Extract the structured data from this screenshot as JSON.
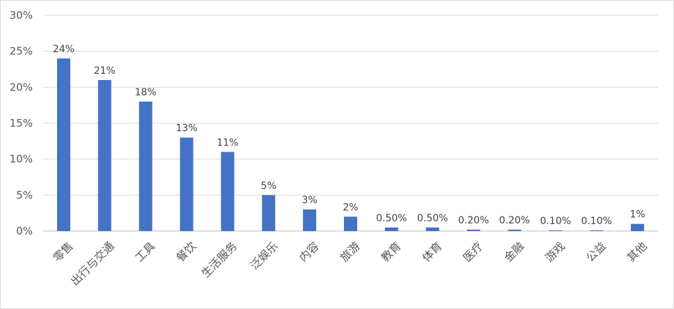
{
  "chart_data": {
    "type": "bar",
    "title": "",
    "xlabel": "",
    "ylabel": "",
    "ylim": [
      0,
      30
    ],
    "yticks": [
      0,
      5,
      10,
      15,
      20,
      25,
      30
    ],
    "ytick_labels": [
      "0%",
      "5%",
      "10%",
      "15%",
      "20%",
      "25%",
      "30%"
    ],
    "grid": true,
    "legend": "none",
    "bar_color": "#4472C4",
    "categories": [
      "零售",
      "出行与交通",
      "工具",
      "餐饮",
      "生活服务",
      "泛娱乐",
      "内容",
      "旅游",
      "教育",
      "体育",
      "医疗",
      "金融",
      "游戏",
      "公益",
      "其他"
    ],
    "values": [
      24,
      21,
      18,
      13,
      11,
      5,
      3,
      2,
      0.5,
      0.5,
      0.2,
      0.2,
      0.1,
      0.1,
      1
    ],
    "data_labels": [
      "24%",
      "21%",
      "18%",
      "13%",
      "11%",
      "5%",
      "3%",
      "2%",
      "0.50%",
      "0.50%",
      "0.20%",
      "0.20%",
      "0.10%",
      "0.10%",
      "1%"
    ]
  }
}
